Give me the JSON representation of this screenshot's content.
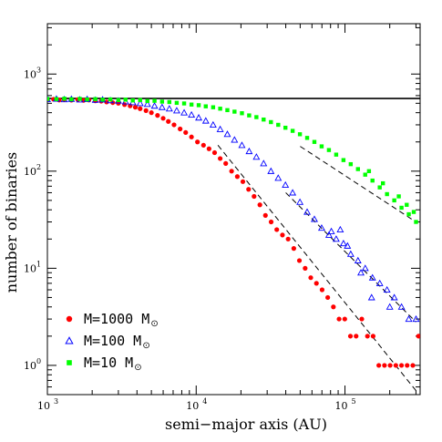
{
  "chart_data": {
    "type": "scatter",
    "xlabel": "semi−major axis (AU)",
    "ylabel": "number of binaries",
    "x_scale": "log",
    "y_scale": "log",
    "xlim": [
      1000,
      320000
    ],
    "ylim": [
      0.5,
      3300
    ],
    "x_ticks": [
      {
        "value": 1000,
        "base": "10",
        "exp": "3"
      },
      {
        "value": 10000,
        "base": "10",
        "exp": "4"
      },
      {
        "value": 100000,
        "base": "10",
        "exp": "5"
      }
    ],
    "y_ticks": [
      {
        "value": 1,
        "base": "10",
        "exp": "0"
      },
      {
        "value": 10,
        "base": "10",
        "exp": "1"
      },
      {
        "value": 100,
        "base": "10",
        "exp": "2"
      },
      {
        "value": 1000,
        "base": "10",
        "exp": "3"
      }
    ],
    "grid": false,
    "legend_position": "bottom-left",
    "reference_line": {
      "y": 560,
      "color": "#000000"
    },
    "series": [
      {
        "name": "M=1000 M",
        "name_sub": "⊙",
        "marker": "circle",
        "color": "#ff0000",
        "fit": {
          "x": [
            14000,
            300000
          ],
          "y": [
            185,
            0.55
          ]
        },
        "points": [
          [
            1000,
            545
          ],
          [
            1100,
            550
          ],
          [
            1200,
            540
          ],
          [
            1300,
            548
          ],
          [
            1450,
            538
          ],
          [
            1600,
            545
          ],
          [
            1750,
            535
          ],
          [
            1900,
            540
          ],
          [
            2100,
            530
          ],
          [
            2300,
            525
          ],
          [
            2500,
            515
          ],
          [
            2750,
            508
          ],
          [
            3000,
            500
          ],
          [
            3300,
            485
          ],
          [
            3600,
            470
          ],
          [
            3900,
            455
          ],
          [
            4200,
            440
          ],
          [
            4600,
            420
          ],
          [
            5000,
            400
          ],
          [
            5500,
            375
          ],
          [
            6000,
            350
          ],
          [
            6500,
            325
          ],
          [
            7100,
            300
          ],
          [
            7800,
            272
          ],
          [
            8500,
            250
          ],
          [
            9300,
            225
          ],
          [
            10200,
            200
          ],
          [
            11200,
            185
          ],
          [
            12200,
            170
          ],
          [
            13300,
            155
          ],
          [
            14500,
            135
          ],
          [
            15800,
            120
          ],
          [
            17300,
            100
          ],
          [
            18900,
            88
          ],
          [
            20600,
            78
          ],
          [
            22500,
            65
          ],
          [
            24500,
            55
          ],
          [
            26800,
            45
          ],
          [
            29200,
            35
          ],
          [
            31900,
            30
          ],
          [
            34800,
            25
          ],
          [
            38000,
            22
          ],
          [
            41500,
            20
          ],
          [
            45300,
            16
          ],
          [
            49400,
            12
          ],
          [
            54000,
            10
          ],
          [
            58900,
            8
          ],
          [
            64300,
            7
          ],
          [
            70200,
            6
          ],
          [
            76600,
            5
          ],
          [
            83600,
            4
          ],
          [
            91300,
            3
          ],
          [
            99700,
            3
          ],
          [
            108800,
            2
          ],
          [
            118800,
            2
          ],
          [
            129700,
            3
          ],
          [
            141600,
            2
          ],
          [
            154600,
            2
          ],
          [
            168800,
            1
          ],
          [
            184300,
            1
          ],
          [
            201200,
            1
          ],
          [
            219700,
            1
          ],
          [
            239800,
            1
          ],
          [
            261800,
            1
          ],
          [
            285800,
            1
          ],
          [
            312000,
            2
          ]
        ]
      },
      {
        "name": "M=100 M",
        "name_sub": "⊙",
        "marker": "triangle",
        "color": "#0000ff",
        "fit": {
          "x": [
            40000,
            300000
          ],
          "y": [
            60,
            2.8
          ]
        },
        "points": [
          [
            1000,
            550
          ],
          [
            1150,
            555
          ],
          [
            1300,
            548
          ],
          [
            1450,
            552
          ],
          [
            1650,
            545
          ],
          [
            1850,
            550
          ],
          [
            2100,
            540
          ],
          [
            2350,
            545
          ],
          [
            2650,
            535
          ],
          [
            3000,
            530
          ],
          [
            3350,
            520
          ],
          [
            3750,
            510
          ],
          [
            4200,
            500
          ],
          [
            4700,
            490
          ],
          [
            5250,
            470
          ],
          [
            5900,
            455
          ],
          [
            6600,
            440
          ],
          [
            7400,
            420
          ],
          [
            8300,
            400
          ],
          [
            9300,
            380
          ],
          [
            10400,
            355
          ],
          [
            11600,
            330
          ],
          [
            13000,
            300
          ],
          [
            14500,
            270
          ],
          [
            16200,
            240
          ],
          [
            18100,
            210
          ],
          [
            20300,
            185
          ],
          [
            22700,
            160
          ],
          [
            25400,
            140
          ],
          [
            28400,
            120
          ],
          [
            31800,
            100
          ],
          [
            35600,
            85
          ],
          [
            39800,
            72
          ],
          [
            44500,
            60
          ],
          [
            49800,
            48
          ],
          [
            55700,
            38
          ],
          [
            62300,
            32
          ],
          [
            69700,
            26
          ],
          [
            78000,
            22
          ],
          [
            87300,
            20
          ],
          [
            97700,
            18
          ],
          [
            109300,
            14
          ],
          [
            122300,
            12
          ],
          [
            136800,
            10
          ],
          [
            153100,
            8
          ],
          [
            171300,
            7
          ],
          [
            191700,
            6
          ],
          [
            214500,
            5
          ],
          [
            240000,
            4
          ],
          [
            268500,
            3
          ],
          [
            300400,
            3
          ],
          [
            81000,
            24
          ],
          [
            93000,
            25
          ],
          [
            104000,
            17
          ],
          [
            128000,
            9
          ],
          [
            151000,
            5
          ],
          [
            200000,
            4
          ]
        ]
      },
      {
        "name": "M=10 M",
        "name_sub": "⊙",
        "marker": "square",
        "color": "#00ff00",
        "fit": {
          "x": [
            50000,
            300000
          ],
          "y": [
            180,
            30
          ]
        },
        "points": [
          [
            1000,
            555
          ],
          [
            1150,
            552
          ],
          [
            1300,
            558
          ],
          [
            1450,
            550
          ],
          [
            1650,
            555
          ],
          [
            1850,
            548
          ],
          [
            2100,
            552
          ],
          [
            2350,
            545
          ],
          [
            2650,
            548
          ],
          [
            3000,
            540
          ],
          [
            3350,
            545
          ],
          [
            3750,
            535
          ],
          [
            4200,
            540
          ],
          [
            4700,
            528
          ],
          [
            5250,
            530
          ],
          [
            5900,
            520
          ],
          [
            6600,
            515
          ],
          [
            7400,
            505
          ],
          [
            8300,
            498
          ],
          [
            9300,
            485
          ],
          [
            10400,
            478
          ],
          [
            11600,
            465
          ],
          [
            13000,
            455
          ],
          [
            14500,
            440
          ],
          [
            16200,
            425
          ],
          [
            18100,
            410
          ],
          [
            20300,
            395
          ],
          [
            22700,
            375
          ],
          [
            25400,
            360
          ],
          [
            28400,
            340
          ],
          [
            31800,
            320
          ],
          [
            35600,
            300
          ],
          [
            39800,
            280
          ],
          [
            44500,
            260
          ],
          [
            49800,
            240
          ],
          [
            55700,
            220
          ],
          [
            62300,
            200
          ],
          [
            69700,
            180
          ],
          [
            78000,
            165
          ],
          [
            87300,
            148
          ],
          [
            97700,
            130
          ],
          [
            109300,
            118
          ],
          [
            122300,
            105
          ],
          [
            136800,
            92
          ],
          [
            153100,
            80
          ],
          [
            171300,
            68
          ],
          [
            191700,
            58
          ],
          [
            214500,
            50
          ],
          [
            240000,
            42
          ],
          [
            268500,
            36
          ],
          [
            300400,
            30
          ],
          [
            260000,
            45
          ],
          [
            230000,
            55
          ],
          [
            290000,
            38
          ],
          [
            180000,
            75
          ],
          [
            145000,
            100
          ]
        ]
      }
    ]
  }
}
